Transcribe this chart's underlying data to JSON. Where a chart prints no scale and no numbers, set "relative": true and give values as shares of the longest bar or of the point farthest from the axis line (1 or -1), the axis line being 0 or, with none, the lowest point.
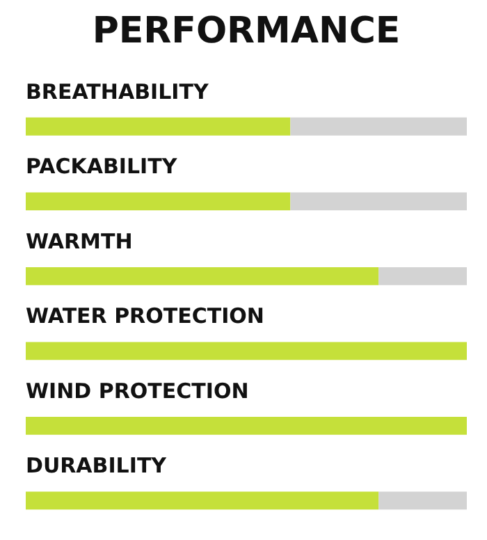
{
  "chart_data": {
    "type": "bar",
    "title": "PERFORMANCE",
    "orientation": "horizontal",
    "stacked": true,
    "relative": true,
    "categories": [
      "BREATHABILITY",
      "PACKABILITY",
      "WARMTH",
      "WATER PROTECTION",
      "WIND PROTECTION",
      "DURABILITY"
    ],
    "series": [
      {
        "color": "#c5e03a",
        "values": [
          0.6,
          0.6,
          0.8,
          1,
          1,
          0.8
        ]
      },
      {
        "color": "#d3d3d3",
        "values": [
          0.4,
          0.4,
          0.2,
          0,
          0,
          0.2
        ]
      }
    ]
  }
}
